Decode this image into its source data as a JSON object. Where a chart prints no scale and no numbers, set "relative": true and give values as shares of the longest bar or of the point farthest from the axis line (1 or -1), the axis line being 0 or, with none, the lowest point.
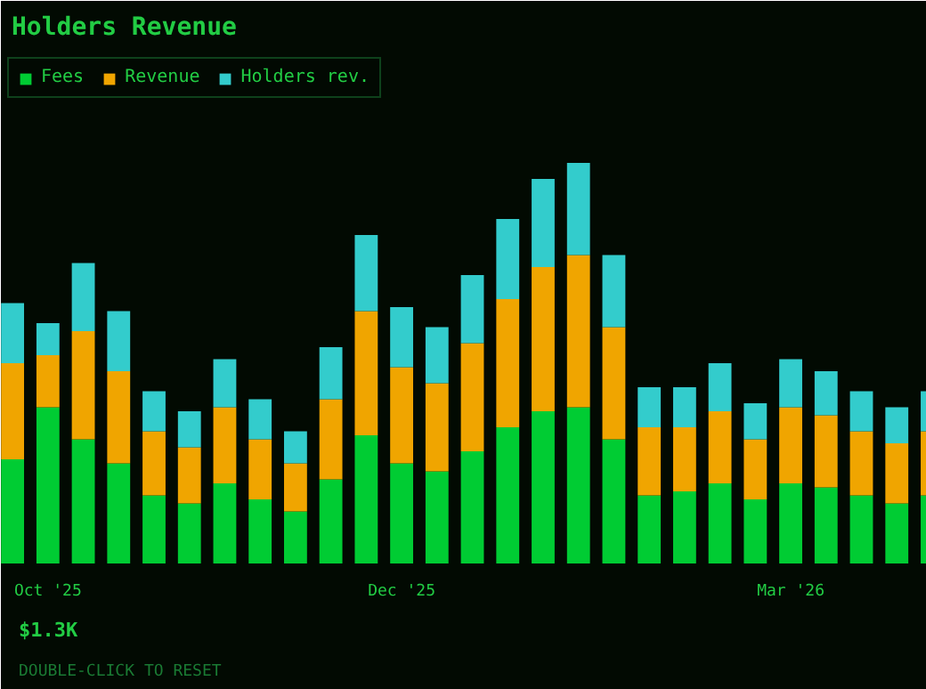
{
  "chart_data": {
    "type": "bar",
    "title": "Holders Revenue",
    "stacked": true,
    "relative": true,
    "legend": "top left",
    "grid": false,
    "categories": [
      null,
      "Oct '25",
      null,
      null,
      null,
      null,
      null,
      null,
      null,
      null,
      null,
      "Dec '25",
      null,
      null,
      null,
      null,
      null,
      null,
      null,
      null,
      null,
      null,
      "Mar '26",
      null,
      null,
      null,
      null
    ],
    "series": [
      {
        "name": "Fees",
        "color": "#00cc33",
        "values": [
          0.26,
          0.39,
          0.31,
          0.25,
          0.17,
          0.15,
          0.2,
          0.16,
          0.13,
          0.21,
          0.32,
          0.25,
          0.23,
          0.28,
          0.34,
          0.38,
          0.39,
          0.31,
          0.17,
          0.18,
          0.2,
          0.16,
          0.2,
          0.19,
          0.17,
          0.15,
          0.17
        ]
      },
      {
        "name": "Revenue",
        "color": "#f0a500",
        "values": [
          0.24,
          0.13,
          0.27,
          0.23,
          0.16,
          0.14,
          0.19,
          0.15,
          0.12,
          0.2,
          0.31,
          0.24,
          0.22,
          0.27,
          0.32,
          0.36,
          0.38,
          0.28,
          0.17,
          0.16,
          0.18,
          0.15,
          0.19,
          0.18,
          0.16,
          0.15,
          0.16
        ]
      },
      {
        "name": "Holders rev.",
        "color": "#33cccc",
        "values": [
          0.15,
          0.08,
          0.17,
          0.15,
          0.1,
          0.09,
          0.12,
          0.1,
          0.08,
          0.13,
          0.19,
          0.15,
          0.14,
          0.17,
          0.2,
          0.22,
          0.23,
          0.18,
          0.1,
          0.1,
          0.12,
          0.09,
          0.12,
          0.11,
          0.1,
          0.09,
          0.1
        ]
      }
    ],
    "annotations": [
      "$1.3K",
      "DOUBLE-CLICK TO RESET"
    ]
  }
}
